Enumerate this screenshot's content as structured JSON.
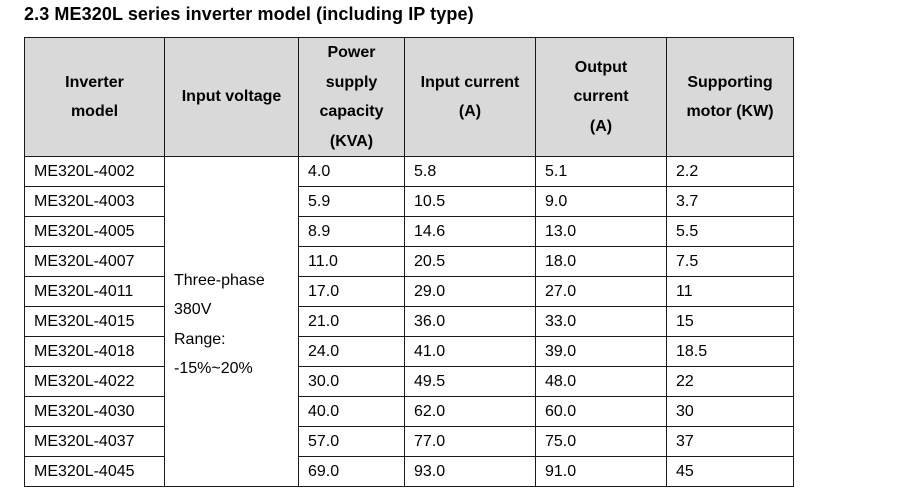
{
  "title": "2.3 ME320L series inverter model (including IP type)",
  "table": {
    "headers": [
      "Inverter model",
      "Input voltage",
      "Power supply capacity (KVA)",
      "Input current (A)",
      "Output current (A)",
      "Supporting motor (KW)"
    ],
    "input_voltage_lines": [
      "Three-phase",
      "380V",
      "Range:",
      "-15%~20%"
    ],
    "rows": [
      {
        "model": "ME320L-4002",
        "capacity": "4.0",
        "input_current": "5.8",
        "output_current": "5.1",
        "motor": "2.2"
      },
      {
        "model": "ME320L-4003",
        "capacity": "5.9",
        "input_current": "10.5",
        "output_current": "9.0",
        "motor": "3.7"
      },
      {
        "model": "ME320L-4005",
        "capacity": "8.9",
        "input_current": "14.6",
        "output_current": "13.0",
        "motor": "5.5"
      },
      {
        "model": "ME320L-4007",
        "capacity": "11.0",
        "input_current": "20.5",
        "output_current": "18.0",
        "motor": "7.5"
      },
      {
        "model": "ME320L-4011",
        "capacity": "17.0",
        "input_current": "29.0",
        "output_current": "27.0",
        "motor": "11"
      },
      {
        "model": "ME320L-4015",
        "capacity": "21.0",
        "input_current": "36.0",
        "output_current": "33.0",
        "motor": "15"
      },
      {
        "model": "ME320L-4018",
        "capacity": "24.0",
        "input_current": "41.0",
        "output_current": "39.0",
        "motor": "18.5"
      },
      {
        "model": "ME320L-4022",
        "capacity": "30.0",
        "input_current": "49.5",
        "output_current": "48.0",
        "motor": "22"
      },
      {
        "model": "ME320L-4030",
        "capacity": "40.0",
        "input_current": "62.0",
        "output_current": "60.0",
        "motor": "30"
      },
      {
        "model": "ME320L-4037",
        "capacity": "57.0",
        "input_current": "77.0",
        "output_current": "75.0",
        "motor": "37"
      },
      {
        "model": "ME320L-4045",
        "capacity": "69.0",
        "input_current": "93.0",
        "output_current": "91.0",
        "motor": "45"
      }
    ]
  },
  "colors": {
    "header_background": "#d9d9d9",
    "border": "#1a1a1a",
    "text": "#000000"
  }
}
